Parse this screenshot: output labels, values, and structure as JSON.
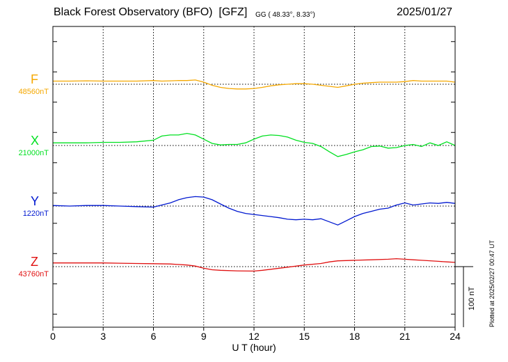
{
  "header": {
    "station": "Black Forest Observatory (BFO)",
    "agency": "[GFZ]",
    "coords": "GG ( 48.33°,   8.33°)",
    "date": "2025/01/27"
  },
  "plotted_note": "Plotted at 2025/02/27 00:47 UT",
  "chart_data": {
    "type": "line",
    "xlabel": "U T (hour)",
    "xlim": [
      0,
      24
    ],
    "xticks": [
      "0",
      "3",
      "6",
      "9",
      "12",
      "15",
      "18",
      "21",
      "24"
    ],
    "scale_bar_nT": 100,
    "scale_label": "100 nT",
    "nT_per_band": 100,
    "series": [
      {
        "name": "F",
        "base_label": "48560nT",
        "color": "#f5a800",
        "points": [
          [
            0,
            6
          ],
          [
            1,
            6
          ],
          [
            2,
            6.5
          ],
          [
            3,
            6
          ],
          [
            4,
            6
          ],
          [
            5,
            6
          ],
          [
            6,
            7
          ],
          [
            6.5,
            6
          ],
          [
            7,
            6.5
          ],
          [
            7.5,
            7
          ],
          [
            8,
            7
          ],
          [
            8.5,
            8
          ],
          [
            9,
            4
          ],
          [
            9.5,
            -2
          ],
          [
            10,
            -6
          ],
          [
            10.5,
            -8
          ],
          [
            11,
            -9
          ],
          [
            11.5,
            -9
          ],
          [
            12,
            -8
          ],
          [
            12.5,
            -6
          ],
          [
            13,
            -3
          ],
          [
            13.5,
            -1
          ],
          [
            14,
            0
          ],
          [
            14.5,
            1
          ],
          [
            15,
            1
          ],
          [
            15.5,
            0
          ],
          [
            16,
            -2
          ],
          [
            16.5,
            -4
          ],
          [
            17,
            -6
          ],
          [
            17.5,
            -3
          ],
          [
            18,
            0
          ],
          [
            18.5,
            2
          ],
          [
            19,
            3
          ],
          [
            19.5,
            4
          ],
          [
            20,
            4
          ],
          [
            20.5,
            4
          ],
          [
            21,
            5
          ],
          [
            21.5,
            7
          ],
          [
            22,
            6
          ],
          [
            22.5,
            6
          ],
          [
            23,
            6
          ],
          [
            23.5,
            6
          ],
          [
            24,
            4
          ]
        ]
      },
      {
        "name": "X",
        "base_label": "21000nT",
        "color": "#00e020",
        "points": [
          [
            0,
            5
          ],
          [
            1,
            5
          ],
          [
            2,
            5
          ],
          [
            3,
            6
          ],
          [
            4,
            6
          ],
          [
            5,
            7
          ],
          [
            6,
            10
          ],
          [
            6.5,
            18
          ],
          [
            7,
            20
          ],
          [
            7.5,
            20
          ],
          [
            8,
            23
          ],
          [
            8.5,
            20
          ],
          [
            9,
            12
          ],
          [
            9.5,
            4
          ],
          [
            10,
            1
          ],
          [
            10.5,
            2
          ],
          [
            11,
            2
          ],
          [
            11.5,
            5
          ],
          [
            12,
            12
          ],
          [
            12.5,
            18
          ],
          [
            13,
            20
          ],
          [
            13.5,
            19
          ],
          [
            14,
            16
          ],
          [
            14.5,
            10
          ],
          [
            15,
            6
          ],
          [
            15.5,
            4
          ],
          [
            16,
            -2
          ],
          [
            16.5,
            -12
          ],
          [
            17,
            -21
          ],
          [
            17.5,
            -17
          ],
          [
            18,
            -12
          ],
          [
            18.5,
            -8
          ],
          [
            19,
            -2
          ],
          [
            19.5,
            -1
          ],
          [
            20,
            -5
          ],
          [
            20.5,
            -4
          ],
          [
            21,
            0
          ],
          [
            21.5,
            2
          ],
          [
            22,
            -2
          ],
          [
            22.5,
            5
          ],
          [
            23,
            0
          ],
          [
            23.5,
            7
          ],
          [
            24,
            0
          ]
        ]
      },
      {
        "name": "Y",
        "base_label": "1220nT",
        "color": "#0018d0",
        "points": [
          [
            0,
            1
          ],
          [
            1,
            0
          ],
          [
            2,
            1
          ],
          [
            3,
            1
          ],
          [
            4,
            0
          ],
          [
            5,
            -1
          ],
          [
            6,
            -2
          ],
          [
            6.5,
            2
          ],
          [
            7,
            6
          ],
          [
            7.5,
            12
          ],
          [
            8,
            16
          ],
          [
            8.5,
            18
          ],
          [
            9,
            17
          ],
          [
            9.5,
            12
          ],
          [
            10,
            4
          ],
          [
            10.5,
            -4
          ],
          [
            11,
            -10
          ],
          [
            11.5,
            -14
          ],
          [
            12,
            -16
          ],
          [
            12.5,
            -18
          ],
          [
            13,
            -20
          ],
          [
            13.5,
            -22
          ],
          [
            14,
            -25
          ],
          [
            14.5,
            -26
          ],
          [
            15,
            -25
          ],
          [
            15.5,
            -26
          ],
          [
            16,
            -24
          ],
          [
            16.5,
            -30
          ],
          [
            17,
            -36
          ],
          [
            17.5,
            -28
          ],
          [
            18,
            -20
          ],
          [
            18.5,
            -14
          ],
          [
            19,
            -10
          ],
          [
            19.5,
            -6
          ],
          [
            20,
            -4
          ],
          [
            20.5,
            2
          ],
          [
            21,
            6
          ],
          [
            21.5,
            2
          ],
          [
            22,
            4
          ],
          [
            22.5,
            6
          ],
          [
            23,
            5
          ],
          [
            23.5,
            7
          ],
          [
            24,
            5
          ]
        ]
      },
      {
        "name": "Z",
        "base_label": "43760nT",
        "color": "#e01010",
        "points": [
          [
            0,
            7
          ],
          [
            1,
            7
          ],
          [
            2,
            7
          ],
          [
            3,
            7
          ],
          [
            4,
            6.5
          ],
          [
            5,
            6
          ],
          [
            6,
            5.5
          ],
          [
            7,
            5
          ],
          [
            8,
            3
          ],
          [
            8.5,
            1
          ],
          [
            9,
            -3
          ],
          [
            9.5,
            -6
          ],
          [
            10,
            -7
          ],
          [
            11,
            -8
          ],
          [
            12,
            -8.5
          ],
          [
            12.5,
            -7
          ],
          [
            13,
            -5
          ],
          [
            14,
            -1
          ],
          [
            15,
            3
          ],
          [
            16,
            6
          ],
          [
            16.5,
            9
          ],
          [
            17,
            11
          ],
          [
            18,
            12
          ],
          [
            19,
            13
          ],
          [
            20,
            14
          ],
          [
            20.5,
            15
          ],
          [
            21,
            14
          ],
          [
            21.5,
            13
          ],
          [
            22,
            12
          ],
          [
            23,
            10
          ],
          [
            23.5,
            9
          ],
          [
            24,
            8
          ]
        ]
      }
    ]
  }
}
